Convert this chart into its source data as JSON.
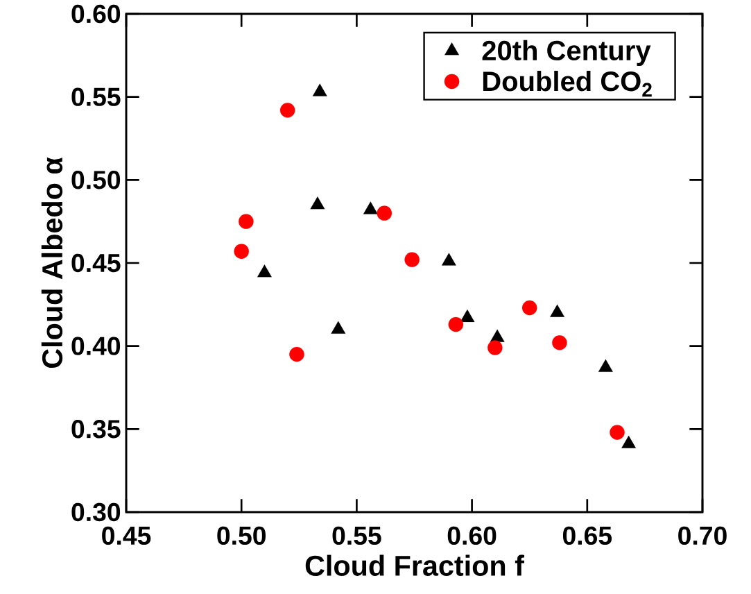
{
  "chart_data": {
    "type": "scatter",
    "xlabel": "Cloud Fraction f",
    "ylabel": "Cloud Albedo α",
    "xlim": [
      0.45,
      0.7
    ],
    "ylim": [
      0.3,
      0.6
    ],
    "xticks": [
      {
        "value": 0.45,
        "label": "0.45"
      },
      {
        "value": 0.5,
        "label": "0.50"
      },
      {
        "value": 0.55,
        "label": "0.55"
      },
      {
        "value": 0.6,
        "label": "0.60"
      },
      {
        "value": 0.65,
        "label": "0.65"
      },
      {
        "value": 0.7,
        "label": "0.70"
      }
    ],
    "yticks": [
      {
        "value": 0.3,
        "label": "0.30"
      },
      {
        "value": 0.35,
        "label": "0.35"
      },
      {
        "value": 0.4,
        "label": "0.40"
      },
      {
        "value": 0.45,
        "label": "0.45"
      },
      {
        "value": 0.5,
        "label": "0.50"
      },
      {
        "value": 0.55,
        "label": "0.55"
      },
      {
        "value": 0.6,
        "label": "0.60"
      }
    ],
    "legend": "top right",
    "grid": false,
    "series": [
      {
        "name": "20th Century",
        "color": "#000000",
        "marker": "triangle",
        "x": [
          0.51,
          0.533,
          0.534,
          0.542,
          0.556,
          0.59,
          0.598,
          0.611,
          0.637,
          0.658,
          0.668
        ],
        "values": [
          0.444,
          0.485,
          0.553,
          0.41,
          0.482,
          0.451,
          0.417,
          0.405,
          0.42,
          0.387,
          0.341
        ]
      },
      {
        "name": "Doubled CO$_{2}$",
        "color": "#ff0000",
        "marker": "circle",
        "x": [
          0.5,
          0.502,
          0.52,
          0.524,
          0.562,
          0.574,
          0.593,
          0.61,
          0.625,
          0.638,
          0.663
        ],
        "values": [
          0.457,
          0.475,
          0.542,
          0.395,
          0.48,
          0.452,
          0.413,
          0.399,
          0.423,
          0.402,
          0.348
        ]
      }
    ]
  }
}
